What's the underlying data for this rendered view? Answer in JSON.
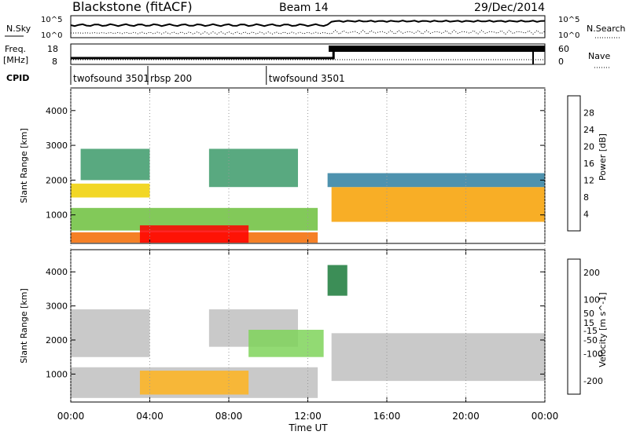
{
  "header": {
    "station": "Blackstone (fitACF)",
    "beam": "Beam 14",
    "date": "29/Dec/2014"
  },
  "side_labels": {
    "nsky": "N.Sky",
    "nsearch": "N.Search",
    "freq_line1": "Freq.",
    "freq_line2": "[MHz]",
    "nave": "Nave",
    "cpid": "CPID"
  },
  "noise_panel": {
    "top_tick": "10^5",
    "bottom_tick": "10^0",
    "right_top_tick": "10^5",
    "right_bottom_tick": "10^0"
  },
  "freq_panel": {
    "left_ticks": [
      "18",
      "8"
    ],
    "right_ticks": [
      "60",
      "0"
    ]
  },
  "cpid_segments": [
    {
      "label": "twofsound 3501",
      "start_hour": 0,
      "end_hour": 3.9
    },
    {
      "label": "rbsp 200",
      "start_hour": 3.9,
      "end_hour": 9.9
    },
    {
      "label": "twofsound 3501",
      "start_hour": 9.9,
      "end_hour": 24
    }
  ],
  "x_axis": {
    "label": "Time UT",
    "ticks": [
      "00:00",
      "04:00",
      "08:00",
      "12:00",
      "16:00",
      "20:00",
      "00:00"
    ]
  },
  "colors": {
    "frame": "#000000",
    "power_scale": [
      "#0000ff",
      "#1f4fe0",
      "#2f7fa0",
      "#3c9a6a",
      "#6cbf3c",
      "#b8d620",
      "#f0d000",
      "#f7a000",
      "#f36a00",
      "#e83000",
      "#ff0000"
    ],
    "velocity_scale": [
      "#ff0000",
      "#ff5a00",
      "#ff8c00",
      "#ffb41e",
      "#c0c0c0",
      "#c0c0c0",
      "#7fd45a",
      "#3cb43c",
      "#1a7a3a",
      "#1850c8",
      "#0000b0"
    ]
  },
  "chart_data": [
    {
      "type": "heatmap",
      "panel": "power",
      "ylabel": "Slant Range [km]",
      "xlabel": "",
      "ylim": [
        180,
        4650
      ],
      "yticks": [
        "1000",
        "2000",
        "3000",
        "4000"
      ],
      "colorbar": {
        "label": "Power [dB]",
        "ticks": [
          "4",
          "8",
          "12",
          "16",
          "20",
          "24",
          "28"
        ],
        "range": [
          0,
          32
        ]
      },
      "approx_bands": [
        {
          "t_start": 0.0,
          "t_end": 4.0,
          "r_start": 1500,
          "r_end": 1900,
          "value": 18
        },
        {
          "t_start": 0.5,
          "t_end": 4.0,
          "r_start": 2000,
          "r_end": 2900,
          "value": 10
        },
        {
          "t_start": 0.0,
          "t_end": 12.5,
          "r_start": 200,
          "r_end": 500,
          "value": 26
        },
        {
          "t_start": 0.0,
          "t_end": 12.5,
          "r_start": 550,
          "r_end": 1200,
          "value": 12
        },
        {
          "t_start": 3.5,
          "t_end": 9.0,
          "r_start": 200,
          "r_end": 700,
          "value": 30
        },
        {
          "t_start": 7.0,
          "t_end": 11.5,
          "r_start": 1800,
          "r_end": 2900,
          "value": 10
        },
        {
          "t_start": 13.2,
          "t_end": 24.0,
          "r_start": 800,
          "r_end": 1800,
          "value": 22
        },
        {
          "t_start": 13.0,
          "t_end": 24.0,
          "r_start": 1800,
          "r_end": 2200,
          "value": 8
        }
      ]
    },
    {
      "type": "heatmap",
      "panel": "velocity",
      "ylabel": "Slant Range [km]",
      "xlabel": "Time UT",
      "ylim": [
        180,
        4650
      ],
      "yticks": [
        "1000",
        "2000",
        "3000",
        "4000"
      ],
      "colorbar": {
        "label": "Velocity [m s^-1]",
        "ticks": [
          "-200",
          "-100",
          "-50",
          "-15",
          "15",
          "50",
          "100",
          "200"
        ],
        "range": [
          -250,
          250
        ]
      },
      "approx_bands": [
        {
          "t_start": 0.0,
          "t_end": 4.0,
          "r_start": 1500,
          "r_end": 2900,
          "value": -40
        },
        {
          "t_start": 0.0,
          "t_end": 12.5,
          "r_start": 300,
          "r_end": 1200,
          "value": -60
        },
        {
          "t_start": 3.5,
          "t_end": 9.0,
          "r_start": 400,
          "r_end": 1100,
          "value": -90
        },
        {
          "t_start": 7.0,
          "t_end": 11.5,
          "r_start": 1800,
          "r_end": 2900,
          "value": 5
        },
        {
          "t_start": 9.0,
          "t_end": 12.8,
          "r_start": 1500,
          "r_end": 2300,
          "value": 60
        },
        {
          "t_start": 13.2,
          "t_end": 24.0,
          "r_start": 800,
          "r_end": 2200,
          "value": 0
        },
        {
          "t_start": 13.0,
          "t_end": 14.0,
          "r_start": 3300,
          "r_end": 4200,
          "value": 150
        }
      ]
    }
  ]
}
